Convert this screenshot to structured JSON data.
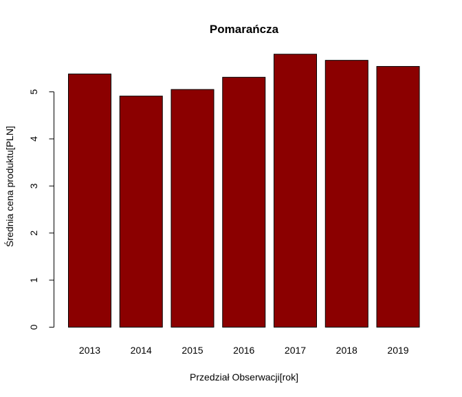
{
  "chart_data": {
    "type": "bar",
    "title": "Pomarańcza",
    "xlabel": "Przedział Obserwacji[rok]",
    "ylabel": "Średnia cena produktu[PLN]",
    "categories": [
      "2013",
      "2014",
      "2015",
      "2016",
      "2017",
      "2018",
      "2019"
    ],
    "values": [
      5.38,
      4.91,
      5.05,
      5.31,
      5.8,
      5.67,
      5.54
    ],
    "yticks": [
      0,
      1,
      2,
      3,
      4,
      5
    ],
    "ylim": [
      0,
      6
    ],
    "grid": false,
    "legend": "none",
    "bar_color": "#8B0000",
    "bar_edge_color": "#000000"
  }
}
